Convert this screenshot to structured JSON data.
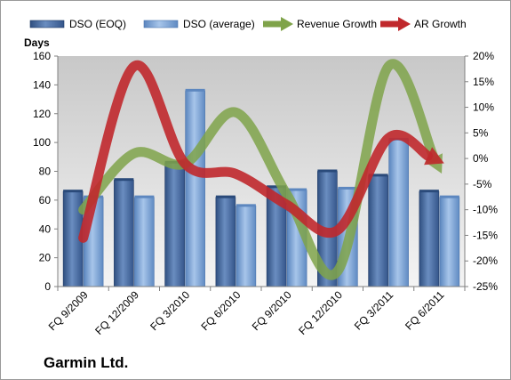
{
  "company_name": "Garmin Ltd.",
  "chart_data": {
    "type": "bar",
    "title": "",
    "ylabel": "Days",
    "ylim": [
      0,
      160
    ],
    "y_ticks": [
      "0",
      "20",
      "40",
      "60",
      "80",
      "100",
      "120",
      "140",
      "160"
    ],
    "y2lim": [
      -25,
      20
    ],
    "y2_ticks": [
      "-25%",
      "-20%",
      "-15%",
      "-10%",
      "-5%",
      "0%",
      "5%",
      "10%",
      "15%",
      "20%"
    ],
    "grid": false,
    "legend_position": "top",
    "categories": [
      "FQ 9/2009",
      "FQ 12/2009",
      "FQ 3/2010",
      "FQ 6/2010",
      "FQ 9/2010",
      "FQ 12/2010",
      "FQ 3/2011",
      "FQ 6/2011"
    ],
    "series": [
      {
        "name": "DSO (EOQ)",
        "type": "bar",
        "axis": "left",
        "color": "#4a6fa5",
        "values": [
          66,
          74,
          86,
          62,
          69,
          80,
          77,
          66
        ]
      },
      {
        "name": "DSO (average)",
        "type": "bar",
        "axis": "left",
        "color": "#7da4d6",
        "values": [
          62,
          62,
          136,
          56,
          67,
          68,
          102,
          62
        ]
      },
      {
        "name": "Revenue Growth",
        "type": "line",
        "axis": "right",
        "color": "#7fa34a",
        "values": [
          -10,
          1,
          -1,
          9,
          -7,
          -22,
          18,
          -2
        ]
      },
      {
        "name": "AR Growth",
        "type": "line",
        "axis": "right",
        "color": "#c0282c",
        "values": [
          -15.5,
          18,
          -1,
          -3,
          -9,
          -14,
          4,
          -0.5
        ]
      }
    ]
  }
}
